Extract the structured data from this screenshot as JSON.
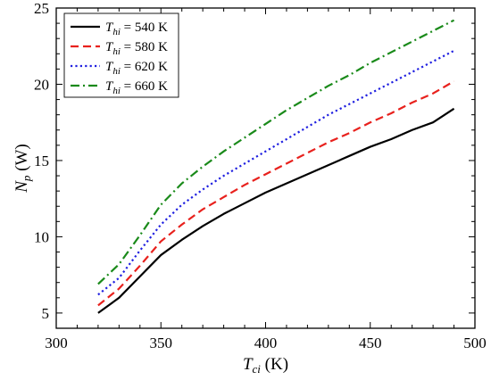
{
  "chart_data": {
    "type": "line",
    "xlabel": {
      "main": "T",
      "sub": "ci",
      "unit": " (K)"
    },
    "ylabel": {
      "main": "N",
      "sub": "p",
      "unit": " (W)"
    },
    "xlim": [
      300,
      500
    ],
    "ylim": [
      4,
      25
    ],
    "xticks": [
      300,
      350,
      400,
      450,
      500
    ],
    "yticks": [
      5,
      10,
      15,
      20,
      25
    ],
    "grid": false,
    "legend_position": "top-left",
    "x": [
      320,
      330,
      340,
      350,
      360,
      370,
      380,
      390,
      400,
      410,
      420,
      430,
      440,
      450,
      460,
      470,
      480,
      490
    ],
    "series": [
      {
        "name": "T_hi = 540 K",
        "label_main": "T",
        "label_sub": "hi",
        "label_rest": " = 540 K",
        "color": "#000000",
        "dash": "solid",
        "values": [
          5.0,
          6.0,
          7.4,
          8.8,
          9.8,
          10.7,
          11.5,
          12.2,
          12.9,
          13.5,
          14.1,
          14.7,
          15.3,
          15.9,
          16.4,
          17.0,
          17.5,
          18.4
        ]
      },
      {
        "name": "T_hi = 580 K",
        "label_main": "T",
        "label_sub": "hi",
        "label_rest": " = 580 K",
        "color": "#e8211d",
        "dash": "dashed",
        "values": [
          5.5,
          6.6,
          8.1,
          9.7,
          10.8,
          11.8,
          12.6,
          13.4,
          14.1,
          14.8,
          15.5,
          16.2,
          16.8,
          17.5,
          18.1,
          18.8,
          19.4,
          20.2
        ]
      },
      {
        "name": "T_hi = 620 K",
        "label_main": "T",
        "label_sub": "hi",
        "label_rest": " = 620 K",
        "color": "#1f1fe0",
        "dash": "dotted",
        "values": [
          6.2,
          7.3,
          9.1,
          10.8,
          12.1,
          13.1,
          14.0,
          14.8,
          15.6,
          16.4,
          17.2,
          18.0,
          18.7,
          19.4,
          20.1,
          20.8,
          21.5,
          22.2
        ]
      },
      {
        "name": "T_hi = 660 K",
        "label_main": "T",
        "label_sub": "hi",
        "label_rest": " = 660 K",
        "color": "#1a8a1a",
        "dash": "dashdot",
        "values": [
          6.9,
          8.2,
          10.1,
          12.1,
          13.5,
          14.6,
          15.6,
          16.5,
          17.4,
          18.3,
          19.1,
          19.9,
          20.6,
          21.4,
          22.1,
          22.8,
          23.5,
          24.2
        ]
      }
    ]
  }
}
